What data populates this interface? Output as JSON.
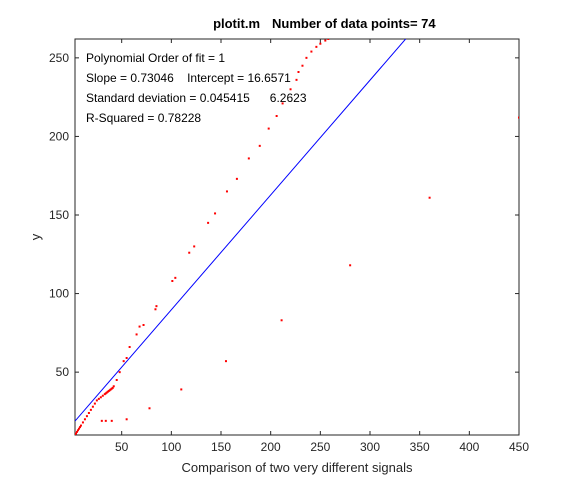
{
  "chart_data": {
    "type": "scatter",
    "title_left": "plotit.m",
    "title_right": "Number of data points= 74",
    "xlabel": "Comparison of two very different signals",
    "ylabel": "y",
    "xlim": [
      3,
      450
    ],
    "ylim": [
      10,
      262
    ],
    "xticks": [
      50,
      100,
      150,
      200,
      250,
      300,
      350,
      400,
      450
    ],
    "yticks": [
      50,
      100,
      150,
      200,
      250
    ],
    "grid": false,
    "annotations": [
      "Polynomial Order of fit = 1",
      "Slope = 0.73046    Intercept = 16.6571",
      "Standard deviation = 0.045415      6.2623",
      "R-Squared = 0.78228"
    ],
    "fit_line": {
      "slope": 0.73046,
      "intercept": 16.6571,
      "color": "#0000ff"
    },
    "series": [
      {
        "marker_color": "#ff0000",
        "x": [
          3,
          4,
          5,
          6,
          7,
          8,
          9,
          11,
          13,
          15,
          17,
          19,
          21,
          23,
          25,
          27,
          29,
          31,
          33,
          34,
          35,
          36,
          37,
          38,
          39,
          40,
          41,
          42,
          45,
          48,
          52,
          55,
          58,
          65,
          68,
          72,
          84,
          85,
          101,
          104,
          118,
          123,
          137,
          144,
          156,
          166,
          178,
          189,
          198,
          206,
          212,
          220,
          226,
          228,
          232,
          236,
          241,
          246,
          250,
          255,
          258,
          262,
          266,
          30,
          34,
          40,
          55,
          78,
          110,
          155,
          211,
          280,
          360,
          450
        ],
        "y": [
          10,
          11,
          12,
          13,
          14,
          15,
          16,
          18,
          20,
          22,
          24,
          26,
          28,
          30,
          32,
          33,
          34,
          35,
          36,
          36.5,
          37,
          37.5,
          38,
          38.5,
          39,
          39.5,
          40,
          41,
          45,
          50,
          57,
          59,
          66,
          74,
          79,
          80,
          90,
          92,
          108,
          110,
          126,
          130,
          145,
          151,
          165,
          173,
          186,
          194,
          205,
          213,
          221,
          230,
          236,
          241,
          245,
          250,
          254,
          257,
          259,
          261,
          262,
          263,
          264,
          19,
          19,
          19,
          20,
          27,
          39,
          57,
          83,
          118,
          161,
          212
        ]
      }
    ]
  }
}
